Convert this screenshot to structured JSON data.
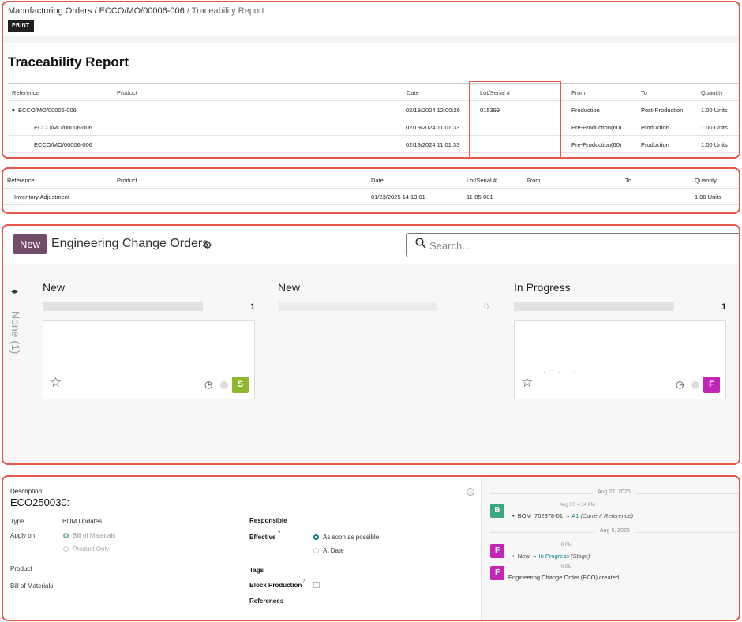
{
  "colors": {
    "accent": "#714b67",
    "highlight": "#e8564a",
    "teal": "#017e84",
    "avatar_s": "#8fb82c",
    "avatar_f": "#c326b7",
    "avatar_b": "#3aa77d"
  },
  "traceability": {
    "breadcrumb": {
      "part1": "Manufacturing Orders",
      "part2": "ECCO/MO/00006-006",
      "current": "Traceability Report",
      "sep": " / "
    },
    "print_label": "PRINT",
    "title": "Traceability Report",
    "headers": [
      "Reference",
      "Product",
      "Date",
      "Lot/Serial #",
      "From",
      "To",
      "Quantity"
    ],
    "rows": [
      {
        "reference": "ECCO/MO/00006-006",
        "expander": "▾",
        "date": "02/19/2024 12:00:26",
        "lot": "015399",
        "from": "Production",
        "to": "Post-Production",
        "qty": "1.00 Units"
      },
      {
        "reference": "ECCO/MO/00006-006",
        "date": "02/19/2024 11:01:33",
        "lot": "",
        "from": "Pre-Production(60)",
        "to": "Production",
        "qty": "1.00 Units"
      },
      {
        "reference": "ECCO/MO/00006-006",
        "date": "02/19/2024 11:01:33",
        "lot": "",
        "from": "Pre-Production(60)",
        "to": "Production",
        "qty": "1.00 Units"
      }
    ]
  },
  "inventory": {
    "headers": [
      "Reference",
      "Product",
      "Date",
      "Lot/Serial #",
      "From",
      "To",
      "Quantity"
    ],
    "row": {
      "reference": "Inventory Adjustment",
      "date": "01/23/2025 14:13:01",
      "lot": "11-05-001",
      "qty": "1.00 Units"
    }
  },
  "eco": {
    "new_button": "New",
    "title": "Engineering Change Orders",
    "gear_icon": "⚙",
    "search_placeholder": "Search...",
    "search_icon": "🔍",
    "group_label": "None (1)",
    "arrows": "◂▸",
    "columns": [
      {
        "title": "New",
        "count": "1",
        "avatar": "S"
      },
      {
        "title": "New",
        "count": "0"
      },
      {
        "title": "In Progress",
        "count": "1",
        "avatar": "F"
      }
    ]
  },
  "form": {
    "description_label": "Description",
    "description_value": "ECO250030:",
    "type_label": "Type",
    "type_value": "BOM Updates",
    "apply_on_label": "Apply on",
    "apply_option1": "Bill of Materials",
    "apply_option2": "Product Only",
    "product_label": "Product",
    "bom_label": "Bill of Materials",
    "responsible_label": "Responsible",
    "effective_label": "Effective",
    "help_mark": "?",
    "effective_option1": "As soon as possible",
    "effective_option2": "At Date",
    "tags_label": "Tags",
    "block_label": "Block Production",
    "references_label": "References"
  },
  "chatter": {
    "date1": "Aug 27, 2025",
    "entry1": {
      "avatar": "B",
      "time": "Aug 27, 4:14 PM",
      "bom": "BOM_702378-01",
      "arrow": "→",
      "new_val": "A1",
      "note": "(Current Reference)"
    },
    "date2": "Aug 6, 2025",
    "entry2": {
      "avatar": "F",
      "time": ":9 PM",
      "old_val": "New",
      "arrow": "→",
      "new_val": "In Progress",
      "note": "(Stage)"
    },
    "entry3": {
      "avatar": "F",
      "time": ":9 PM",
      "text": "Engineering Change Order (ECO) created"
    }
  }
}
